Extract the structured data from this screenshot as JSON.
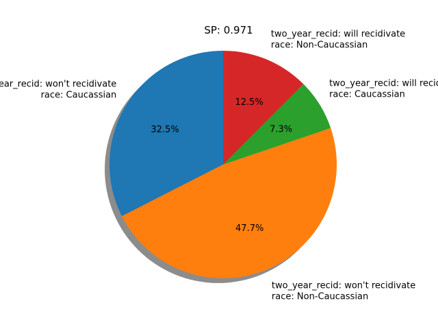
{
  "chart_data": {
    "type": "pie",
    "title": "SP: 0.971",
    "slices": [
      {
        "label_lines": [
          "two_year_recid: won't recidivate",
          "race: Caucassian"
        ],
        "value": 32.5,
        "pct_label": "32.5%",
        "color": "#1f77b4"
      },
      {
        "label_lines": [
          "two_year_recid: won't recidivate",
          "race: Non-Caucassian"
        ],
        "value": 47.7,
        "pct_label": "47.7%",
        "color": "#ff7f0e"
      },
      {
        "label_lines": [
          "two_year_recid: will recidivate",
          "race: Caucassian"
        ],
        "value": 7.3,
        "pct_label": "7.3%",
        "color": "#2ca02c"
      },
      {
        "label_lines": [
          "two_year_recid: will recidivate",
          "race: Non-Caucassian"
        ],
        "value": 12.5,
        "pct_label": "12.5%",
        "color": "#d62728"
      }
    ],
    "start_angle_deg": 90,
    "direction": "counterclockwise",
    "shadow": true
  }
}
